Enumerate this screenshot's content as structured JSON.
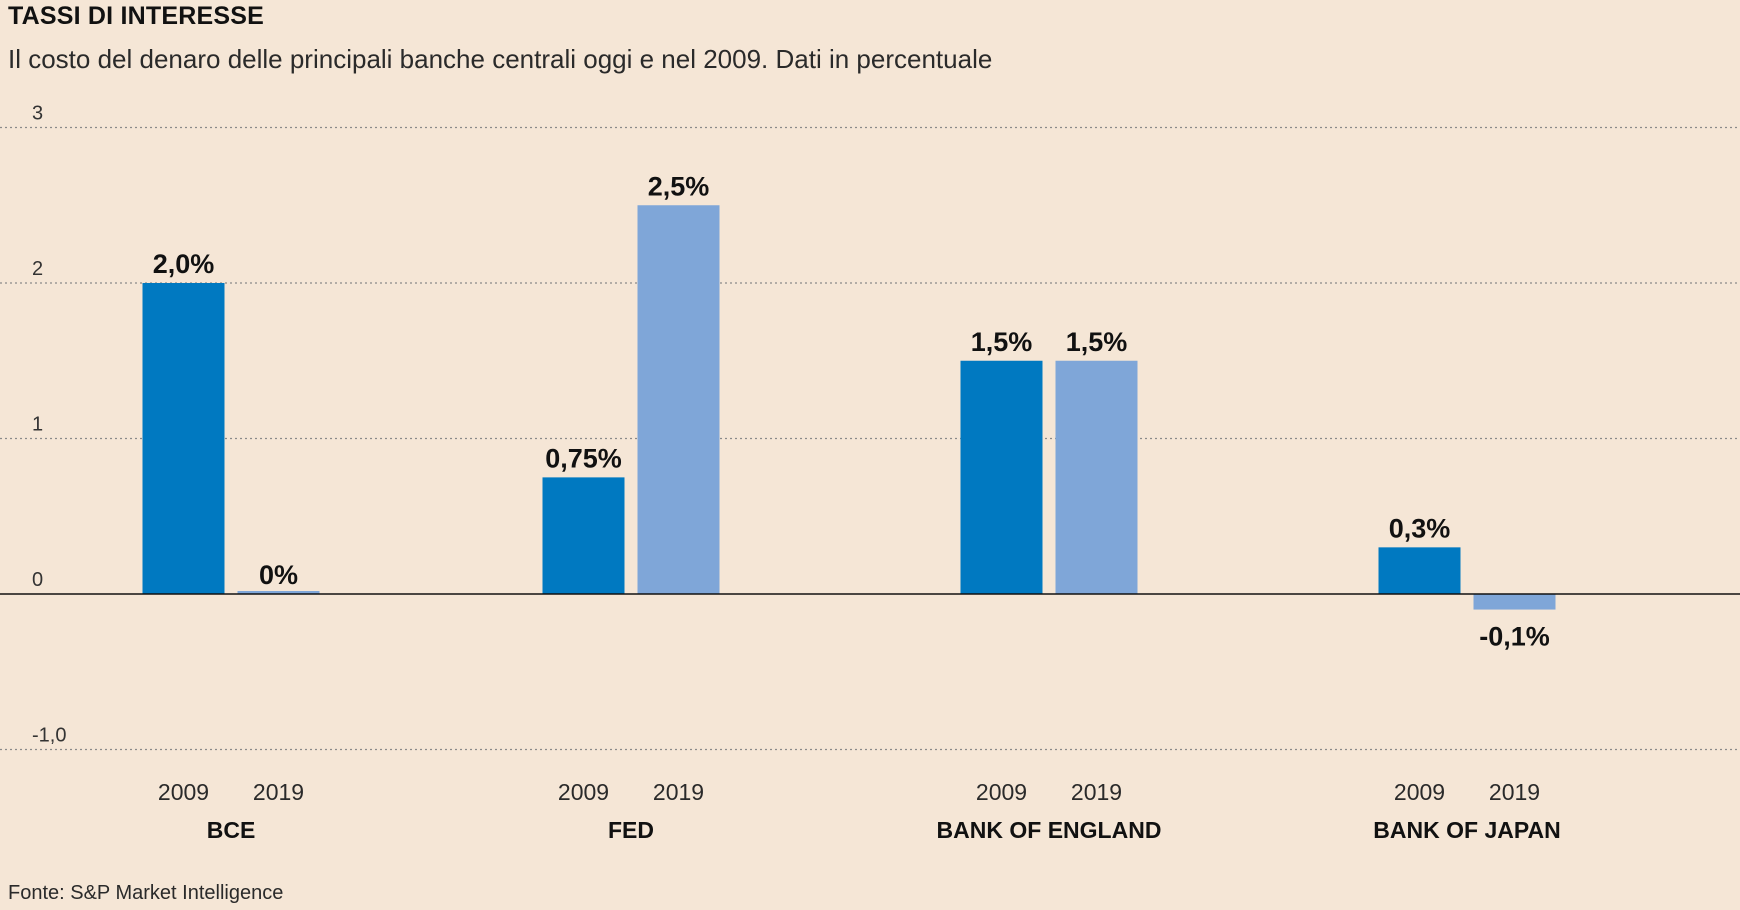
{
  "title": "TASSI DI INTERESSE",
  "subtitle": "Il costo del denaro delle principali banche centrali oggi e nel 2009. Dati in percentuale",
  "source": "Fonte: S&P Market Intelligence",
  "colors": {
    "series_2009": "#0079c1",
    "series_2019": "#7fa6d8",
    "background": "#f5e6d6",
    "grid": "#8a8a8a"
  },
  "chart_data": {
    "type": "bar",
    "title": "TASSI DI INTERESSE",
    "subtitle": "Il costo del denaro delle principali banche centrali oggi e nel 2009. Dati in percentuale",
    "categories": [
      "BCE",
      "FED",
      "BANK OF ENGLAND",
      "BANK OF JAPAN"
    ],
    "series": [
      {
        "name": "2009",
        "values": [
          2.0,
          0.75,
          1.5,
          0.3
        ],
        "labels": [
          "2,0%",
          "0,75%",
          "1,5%",
          "0,3%"
        ]
      },
      {
        "name": "2019",
        "values": [
          0.0,
          2.5,
          1.5,
          -0.1
        ],
        "labels": [
          "0%",
          "2,5%",
          "1,5%",
          "-0,1%"
        ]
      }
    ],
    "ylim": [
      -1,
      3
    ],
    "yticks": [
      3,
      2,
      1,
      0,
      -1
    ],
    "ytick_labels": [
      "3",
      "2",
      "1",
      "0",
      "-1,0"
    ],
    "grid": true,
    "xlabel": "",
    "ylabel": ""
  }
}
